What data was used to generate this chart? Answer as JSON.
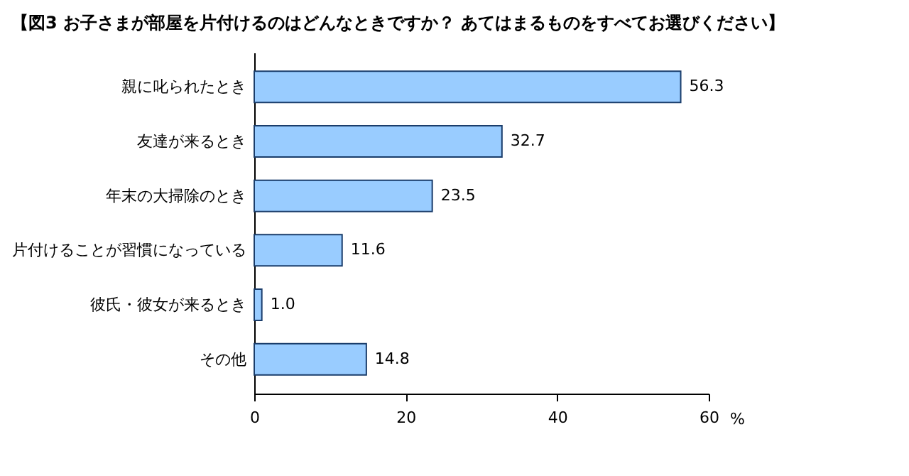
{
  "chart_data": {
    "type": "bar",
    "orientation": "horizontal",
    "title": "【図3  お子さまが部屋を片付けるのはどんなときですか？  あてはまるものをすべてお選びください】",
    "categories": [
      "親に叱られたとき",
      "友達が来るとき",
      "年末の大掃除のとき",
      "片付けることが習慣になっている",
      "彼氏・彼女が来るとき",
      "その他"
    ],
    "values": [
      56.3,
      32.7,
      23.5,
      11.6,
      1.0,
      14.8
    ],
    "value_labels": [
      "56.3",
      "32.7",
      "23.5",
      "11.6",
      "1.0",
      "14.8"
    ],
    "color": "#99ccff",
    "xlim": [
      0,
      60
    ],
    "xticks": [
      0,
      20,
      40,
      60
    ],
    "xlabel": "%",
    "grid": false
  }
}
